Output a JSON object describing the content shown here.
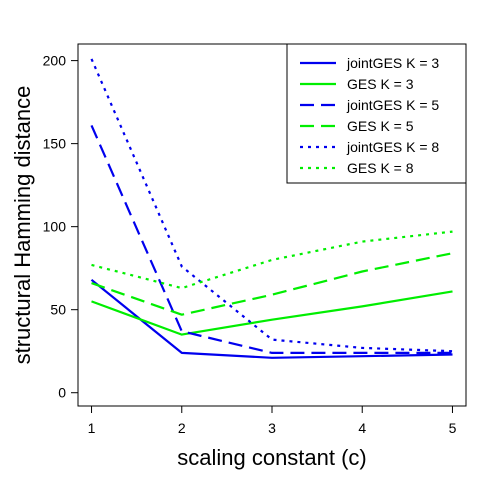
{
  "chart_data": {
    "type": "line",
    "title": "",
    "xlabel": "scaling constant (c)",
    "ylabel": "structural Hamming distance",
    "x": [
      1,
      2,
      3,
      4,
      5
    ],
    "xticks": [
      "1",
      "2",
      "3",
      "4",
      "5"
    ],
    "yticks": [
      "0",
      "50",
      "100",
      "150",
      "200"
    ],
    "ytick_values": [
      0,
      50,
      100,
      150,
      200
    ],
    "xlim": [
      0.85,
      5.15
    ],
    "ylim": [
      -8,
      210
    ],
    "grid": false,
    "legend_position": "top-right",
    "series": [
      {
        "name": "jointGES K = 3",
        "color": "#0000ee",
        "dash": "solid",
        "values": [
          68,
          24,
          21,
          22,
          23
        ]
      },
      {
        "name": "GES K = 3",
        "color": "#00ee00",
        "dash": "solid",
        "values": [
          55,
          35,
          44,
          52,
          61
        ]
      },
      {
        "name": "jointGES K = 5",
        "color": "#0000ee",
        "dash": "dashed",
        "values": [
          161,
          37,
          24,
          24,
          24
        ]
      },
      {
        "name": "GES K = 5",
        "color": "#00ee00",
        "dash": "dashed",
        "values": [
          66,
          47,
          59,
          73,
          84
        ]
      },
      {
        "name": "jointGES K = 8",
        "color": "#0000ee",
        "dash": "dotted",
        "values": [
          201,
          76,
          32,
          27,
          25
        ]
      },
      {
        "name": "GES K = 8",
        "color": "#00ee00",
        "dash": "dotted",
        "values": [
          77,
          63,
          80,
          91,
          97
        ]
      }
    ]
  }
}
